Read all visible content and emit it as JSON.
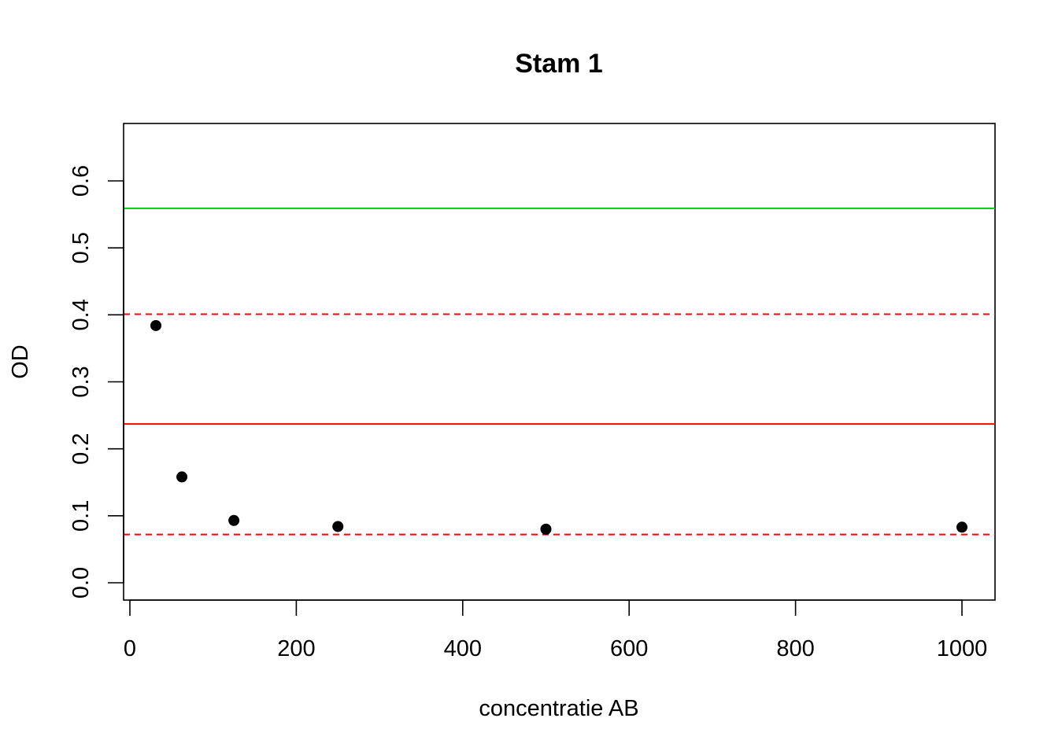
{
  "chart_data": {
    "type": "scatter",
    "title": "Stam 1",
    "xlabel": "concentratie AB",
    "ylabel": "OD",
    "xlim": [
      0,
      1040
    ],
    "ylim": [
      0,
      0.68
    ],
    "x_ticks": [
      0,
      200,
      400,
      600,
      800,
      1000
    ],
    "y_ticks": [
      0.0,
      0.1,
      0.2,
      0.3,
      0.4,
      0.5,
      0.6
    ],
    "x_tick_labels": [
      "0",
      "200",
      "400",
      "600",
      "800",
      "1000"
    ],
    "y_tick_labels": [
      "0.0",
      "0.1",
      "0.2",
      "0.3",
      "0.4",
      "0.5",
      "0.6"
    ],
    "grid": false,
    "series": [
      {
        "x": [
          31.25,
          62.5,
          125,
          250,
          500,
          1000
        ],
        "y": [
          0.384,
          0.158,
          0.093,
          0.084,
          0.08,
          0.083
        ],
        "color": "#000000"
      }
    ],
    "reference_lines": [
      {
        "y": 0.559,
        "color": "#00cc00",
        "style": "solid"
      },
      {
        "y": 0.401,
        "color": "#ff0000",
        "style": "dashed"
      },
      {
        "y": 0.237,
        "color": "#ff0000",
        "style": "solid"
      },
      {
        "y": 0.072,
        "color": "#ff0000",
        "style": "dashed"
      }
    ]
  }
}
